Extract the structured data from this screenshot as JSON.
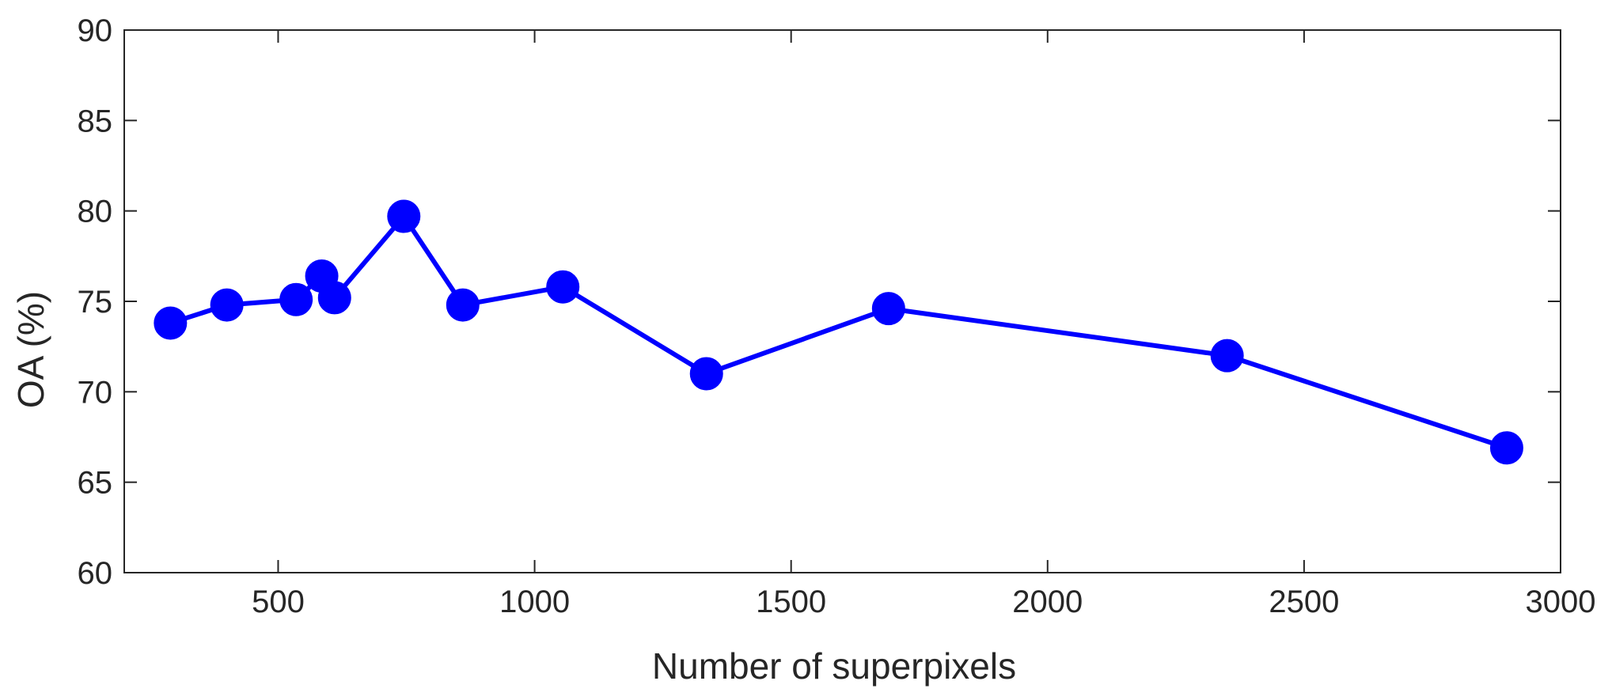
{
  "chart_data": {
    "type": "line",
    "title": "",
    "xlabel": "Number of superpixels",
    "ylabel": "OA (%)",
    "xlim": [
      200,
      3000
    ],
    "ylim": [
      60,
      90
    ],
    "x_ticks": [
      500,
      1000,
      1500,
      2000,
      2500,
      3000
    ],
    "y_ticks": [
      60,
      65,
      70,
      75,
      80,
      85,
      90
    ],
    "grid": false,
    "legend": "none",
    "series": [
      {
        "color": "#0000ff",
        "marker": "circle",
        "x": [
          290,
          400,
          535,
          585,
          610,
          745,
          860,
          1055,
          1335,
          1690,
          2350,
          2895
        ],
        "y": [
          73.8,
          74.8,
          75.1,
          76.4,
          75.2,
          79.7,
          74.8,
          75.8,
          71.0,
          74.6,
          72.0,
          66.9
        ]
      }
    ]
  }
}
